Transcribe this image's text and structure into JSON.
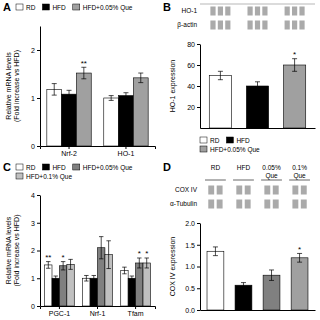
{
  "chart_data": [
    {
      "type": "bar",
      "title": "A",
      "categories": [
        "Nrf-2",
        "HO-1"
      ],
      "series": [
        {
          "name": "RD",
          "color": "white",
          "values": [
            1.18,
            1.0
          ],
          "errors": [
            0.12,
            0.05
          ]
        },
        {
          "name": "HFD",
          "color": "black",
          "values": [
            1.08,
            1.05
          ],
          "errors": [
            0.08,
            0.06
          ]
        },
        {
          "name": "HFD+0.05% Que",
          "color": "#a0a0a0",
          "values": [
            1.52,
            1.42
          ],
          "errors": [
            0.12,
            0.1
          ]
        }
      ],
      "y_label": "Relative mRNA levels\n(Fold increase vs HFD)",
      "ylim": [
        0,
        2.5
      ],
      "yticks": [
        0,
        1,
        2
      ],
      "legend": "upper left",
      "annotations": [
        {
          "text": "**",
          "category": "Nrf-2",
          "series": "HFD+0.05% Que"
        }
      ]
    },
    {
      "type": "bar",
      "title": "B",
      "categories": [
        "RD",
        "HFD",
        "HFD+0.05% Que"
      ],
      "values": [
        50,
        40,
        60
      ],
      "errors": [
        4,
        4,
        6
      ],
      "colors": [
        "white",
        "black",
        "#a0a0a0"
      ],
      "y_label": "HO-1 expression",
      "ylim": [
        0,
        80
      ],
      "yticks": [
        20,
        40,
        60,
        80
      ],
      "tick_labels": "y",
      "legend": "lower right",
      "blot": {
        "row_labels": [
          "HO-1",
          "β-actin"
        ]
      },
      "annotations": [
        {
          "text": "*",
          "category": "HFD+0.05% Que"
        }
      ]
    },
    {
      "type": "bar",
      "title": "C",
      "categories": [
        "PGC-1",
        "Nrf-1",
        "Tfam"
      ],
      "series": [
        {
          "name": "RD",
          "color": "white",
          "values": [
            1.48,
            1.0,
            1.28
          ],
          "errors": [
            0.12,
            0.1,
            0.12
          ]
        },
        {
          "name": "HFD",
          "color": "black",
          "values": [
            1.0,
            1.0,
            1.0
          ],
          "errors": [
            0.08,
            0.1,
            0.08
          ]
        },
        {
          "name": "HFD+0.05% Que",
          "color": "#808080",
          "values": [
            1.45,
            2.1,
            1.55
          ],
          "errors": [
            0.15,
            0.4,
            0.18
          ]
        },
        {
          "name": "HFD+0.1% Que",
          "color": "#c0c0c0",
          "values": [
            1.5,
            1.85,
            1.55
          ],
          "errors": [
            0.18,
            0.5,
            0.18
          ]
        }
      ],
      "y_label": "Relative mRNA levels\n(Fold increase vs HFD)",
      "ylim": [
        0,
        4
      ],
      "yticks": [
        0,
        1,
        2,
        3,
        4
      ],
      "legend": "upper left",
      "annotations": [
        {
          "text": "**",
          "category": "PGC-1",
          "series": "RD"
        },
        {
          "text": "*",
          "category": "PGC-1",
          "series": "HFD+0.05% Que"
        },
        {
          "text": "*",
          "category": "Tfam",
          "series": "HFD+0.05% Que"
        },
        {
          "text": "*",
          "category": "Tfam",
          "series": "HFD+0.1% Que"
        }
      ]
    },
    {
      "type": "bar",
      "title": "D",
      "categories": [
        "RD",
        "HFD",
        "0.05%\nQue",
        "0.1%\nQue"
      ],
      "values": [
        1.35,
        0.57,
        0.8,
        1.2
      ],
      "errors": [
        0.1,
        0.06,
        0.12,
        0.1
      ],
      "colors": [
        "white",
        "black",
        "#808080",
        "#a0a0a0"
      ],
      "y_label": "COX IV expression",
      "ylim": [
        0.0,
        2.0
      ],
      "yticks": [
        {
          "value": 0,
          "label": "0.0"
        },
        0.5,
        {
          "value": 1,
          "label": "1.0"
        },
        1.5,
        {
          "value": 2,
          "label": "2.0"
        }
      ],
      "tick_labels": "y",
      "blot": {
        "row_labels": [
          "COX IV",
          "α-Tubulin"
        ]
      },
      "annotations": [
        {
          "text": "*",
          "category": "0.1%\nQue"
        }
      ]
    }
  ]
}
